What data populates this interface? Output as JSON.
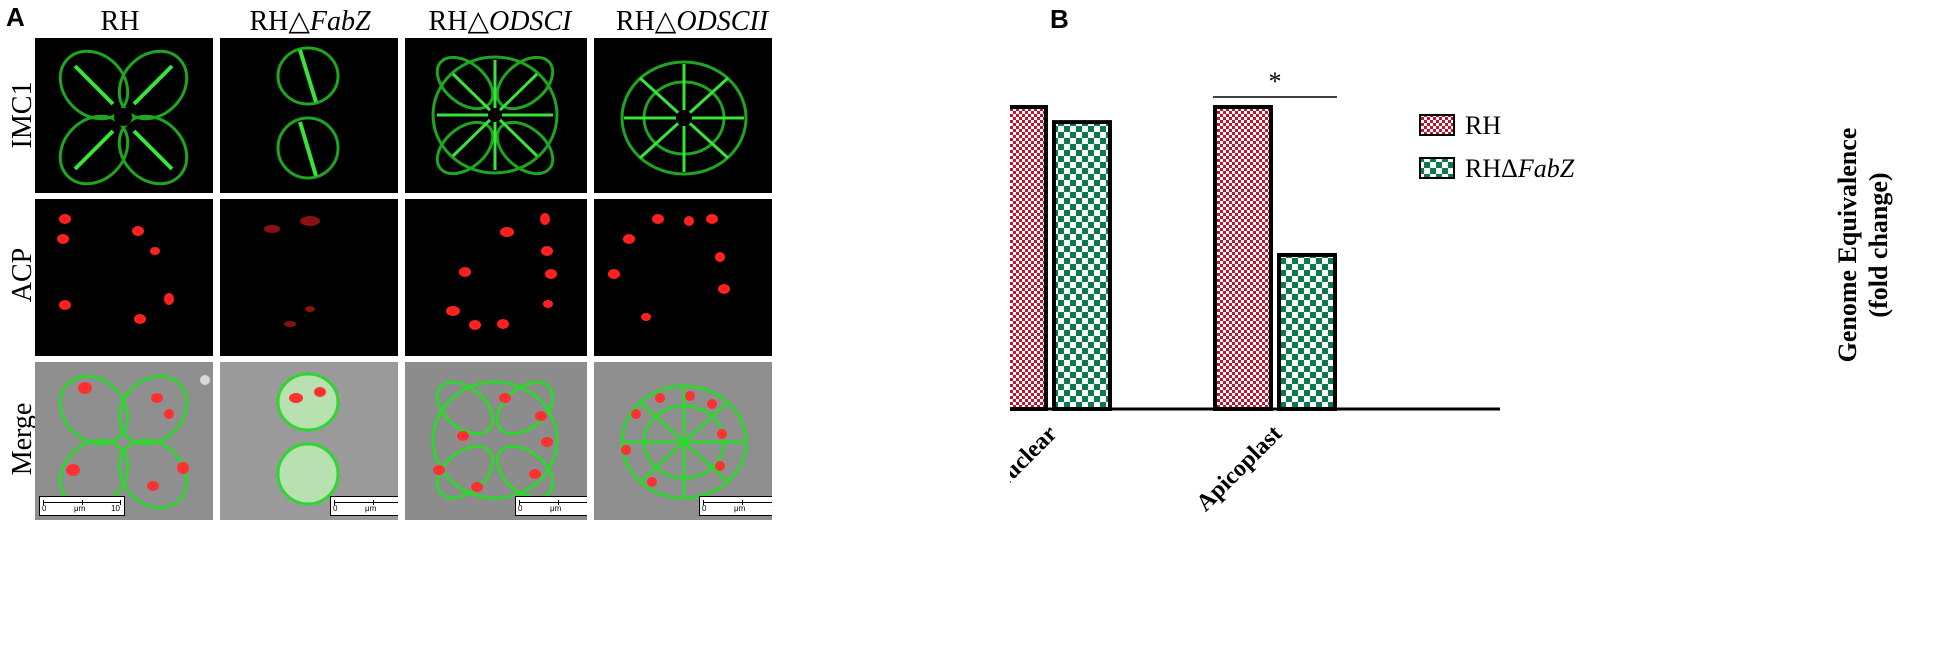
{
  "figure": {
    "panel_a_label": "A",
    "panel_b_label": "B",
    "columns": [
      {
        "prefix": "RH",
        "suffix": ""
      },
      {
        "prefix": "RH△",
        "suffix": "FabZ"
      },
      {
        "prefix": "RH△",
        "suffix": "ODSCI"
      },
      {
        "prefix": "RH△",
        "suffix": "ODSCII"
      }
    ],
    "rows": [
      "IMC1",
      "ACP",
      "Merge"
    ],
    "scalebar": {
      "left": "0",
      "unit": "μm",
      "right": "10"
    }
  },
  "colors": {
    "imc1_green": "#2fd62f",
    "acp_red": "#ff2020",
    "rh_bar": "#c0142a",
    "fabz_bar": "#0b7a4a",
    "merge_gray": "#8f8f8f"
  },
  "chart_data": {
    "type": "bar",
    "categories": [
      "Nuclear",
      "Apicoplast"
    ],
    "series": [
      {
        "name": "RH",
        "values": [
          1.0,
          1.0
        ],
        "pattern": "fine-checker",
        "color": "#c0142a"
      },
      {
        "name": "RHΔFabZ",
        "values": [
          0.95,
          0.51
        ],
        "pattern": "checker",
        "color": "#0b7a4a"
      }
    ],
    "ylabel_line1": "Genome Equivalence",
    "ylabel_line2": "(fold change)",
    "yticks": [
      "0.0",
      "0.2",
      "0.4",
      "0.6",
      "0.8",
      "1.0"
    ],
    "ylim": [
      0,
      1.0
    ],
    "annotations": [
      {
        "text": "*",
        "category": "Apicoplast"
      }
    ],
    "legend": {
      "position": "right",
      "entries": [
        {
          "prefix": "RH",
          "suffix": ""
        },
        {
          "prefix": "RHΔ",
          "suffix": "FabZ"
        }
      ]
    },
    "grid": false
  }
}
